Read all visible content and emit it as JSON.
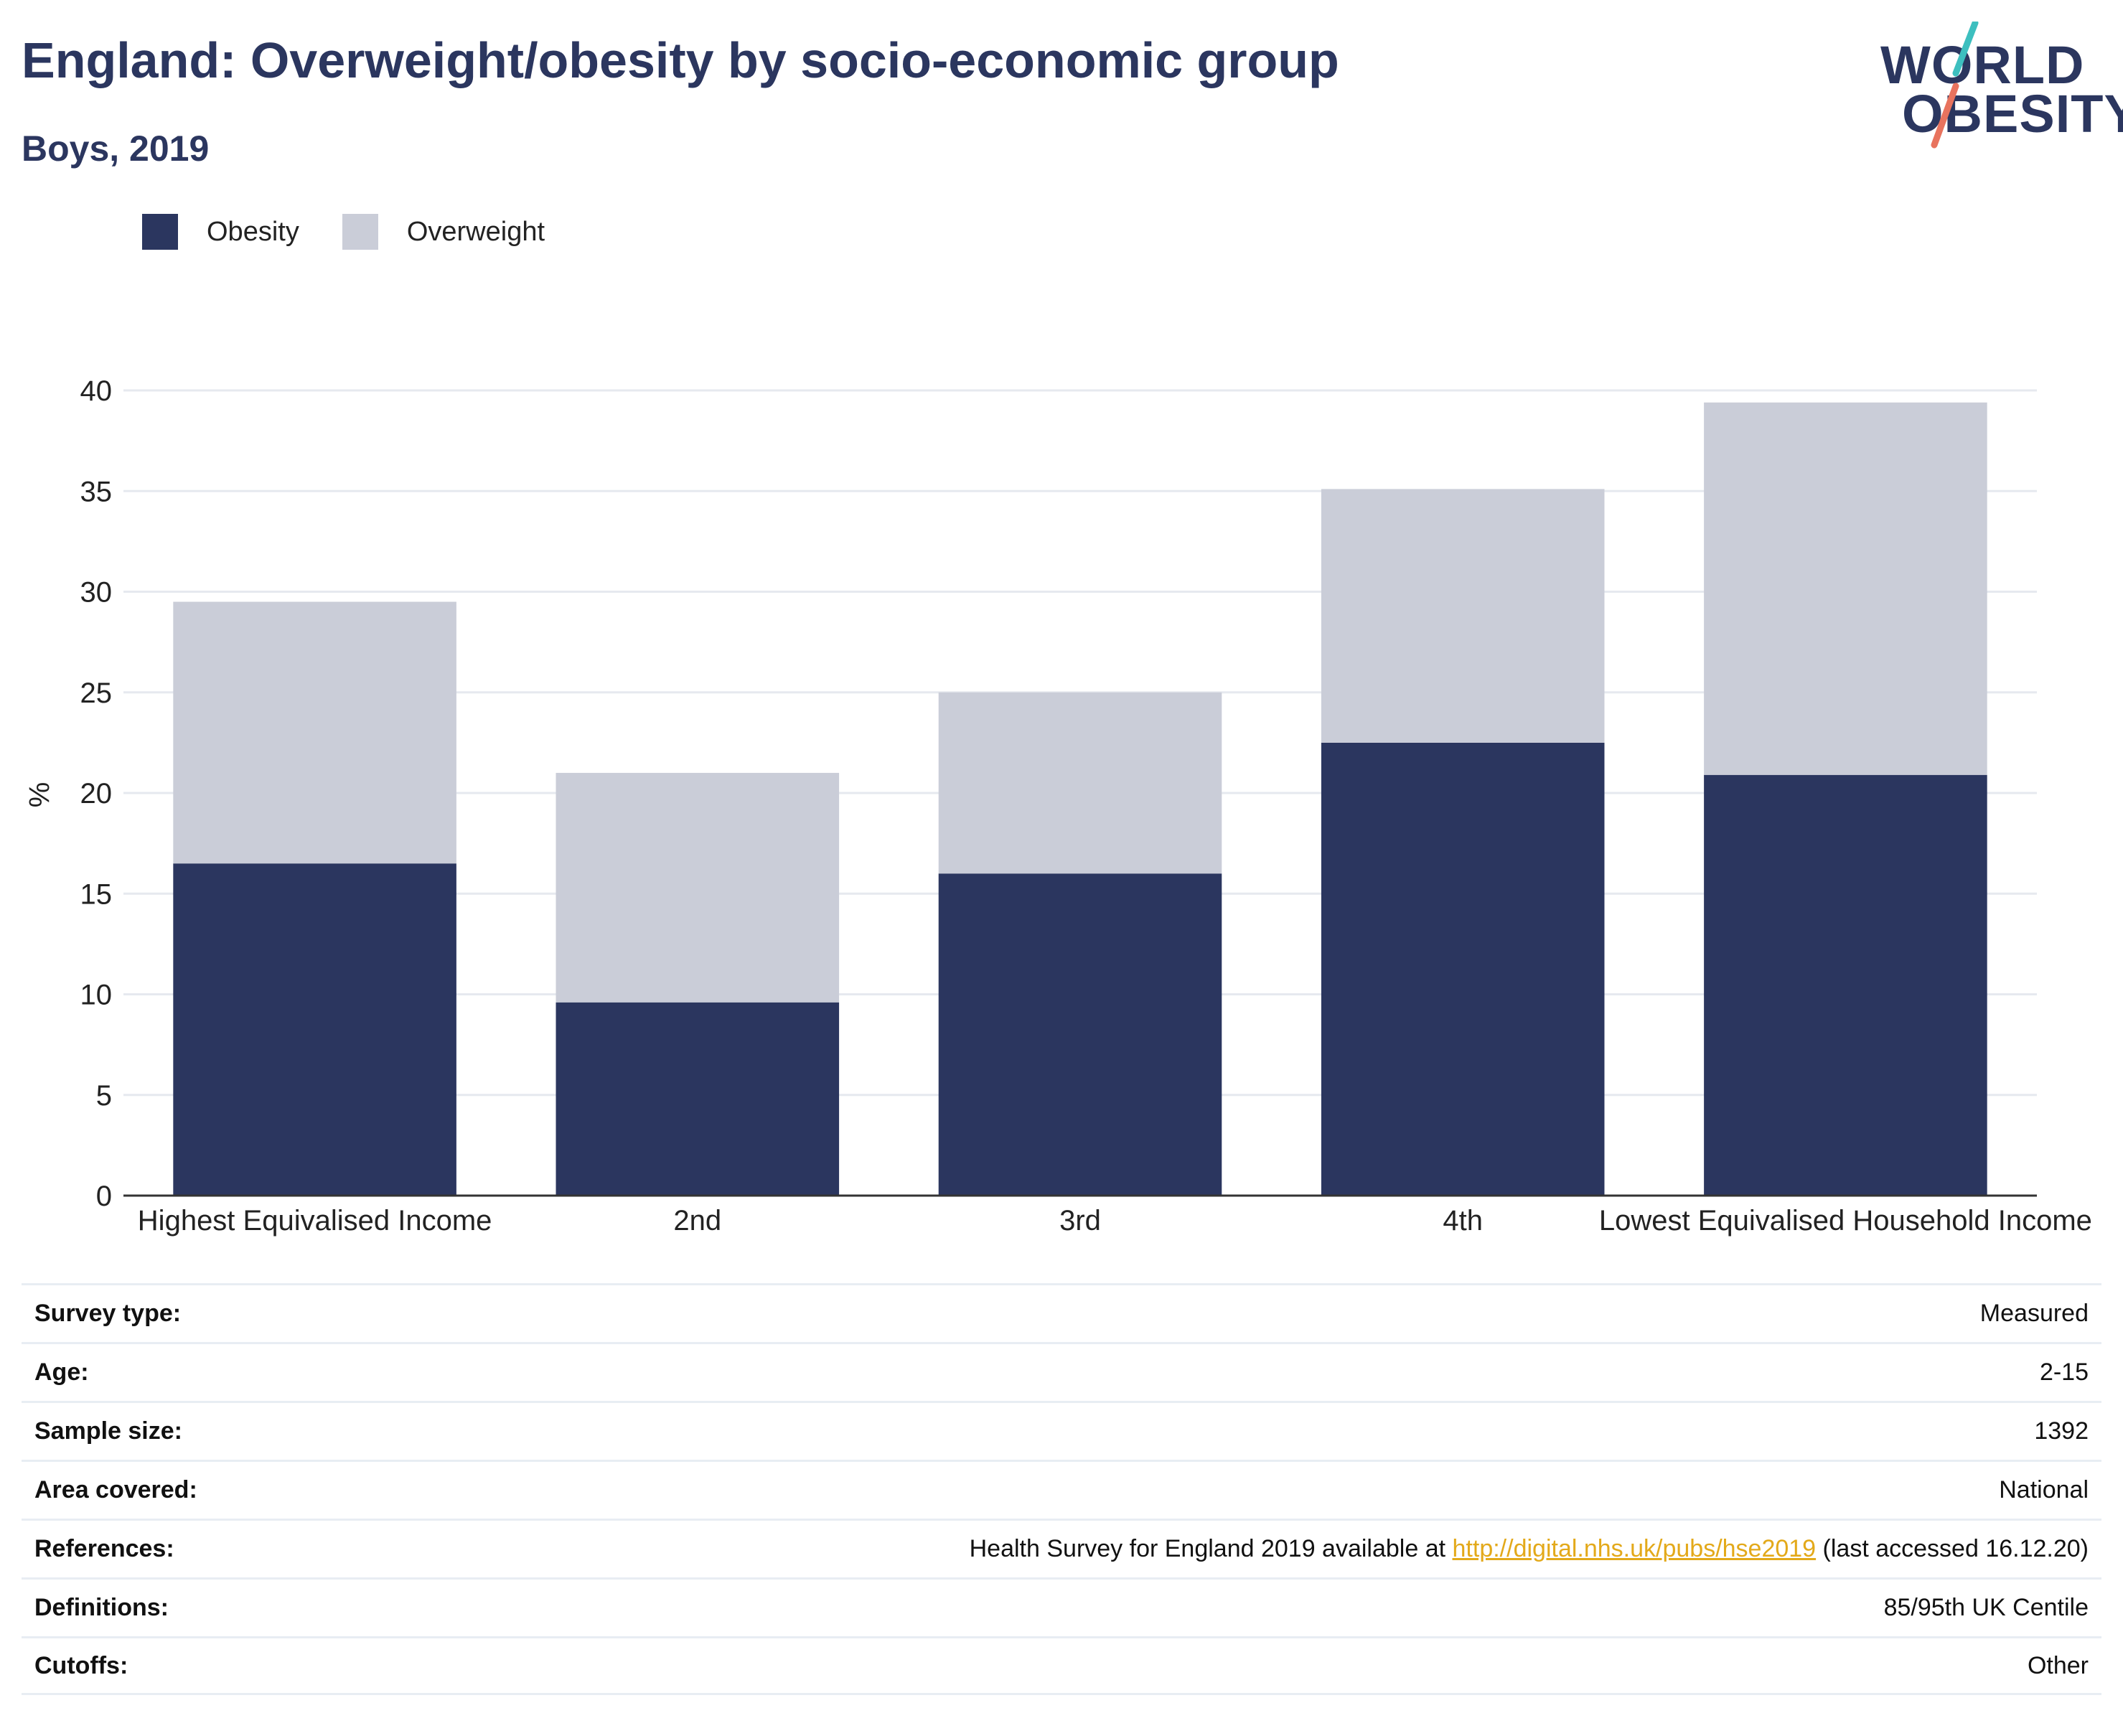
{
  "header": {
    "title": "England: Overweight/obesity by socio-economic group",
    "subtitle": "Boys, 2019"
  },
  "logo": {
    "line1": "WORLD",
    "line2": "OBESITY",
    "accent_teal": "#3dbfbf",
    "accent_red": "#e8735e"
  },
  "colors": {
    "obesity": "#2b365f",
    "overweight": "#cacdd8",
    "text": "#2b365f"
  },
  "legend": [
    {
      "label": "Obesity",
      "color": "#2b365f"
    },
    {
      "label": "Overweight",
      "color": "#cacdd8"
    }
  ],
  "chart_data": {
    "type": "bar",
    "stacked": true,
    "categories": [
      "Highest Equivalised Income",
      "2nd",
      "3rd",
      "4th",
      "Lowest Equivalised Household Income"
    ],
    "series": [
      {
        "name": "Obesity",
        "values": [
          16.5,
          9.6,
          16.0,
          22.5,
          20.9
        ]
      },
      {
        "name": "Overweight",
        "values": [
          13.0,
          11.4,
          9.0,
          12.6,
          18.5
        ]
      }
    ],
    "ylabel": "%",
    "ylim": [
      0,
      40
    ],
    "yticks": [
      0,
      5,
      10,
      15,
      20,
      25,
      30,
      35,
      40
    ],
    "grid": true,
    "legend_position": "top-left"
  },
  "meta": [
    {
      "key": "Survey type:",
      "value": "Measured"
    },
    {
      "key": "Age:",
      "value": "2-15"
    },
    {
      "key": "Sample size:",
      "value": "1392"
    },
    {
      "key": "Area covered:",
      "value": "National"
    },
    {
      "key": "References:",
      "value_pre": "Health Survey for England 2019 available at ",
      "link": "http://digital.nhs.uk/pubs/hse2019",
      "value_post": " (last accessed 16.12.20)"
    },
    {
      "key": "Definitions:",
      "value": "85/95th UK Centile"
    },
    {
      "key": "Cutoffs:",
      "value": "Other"
    }
  ]
}
